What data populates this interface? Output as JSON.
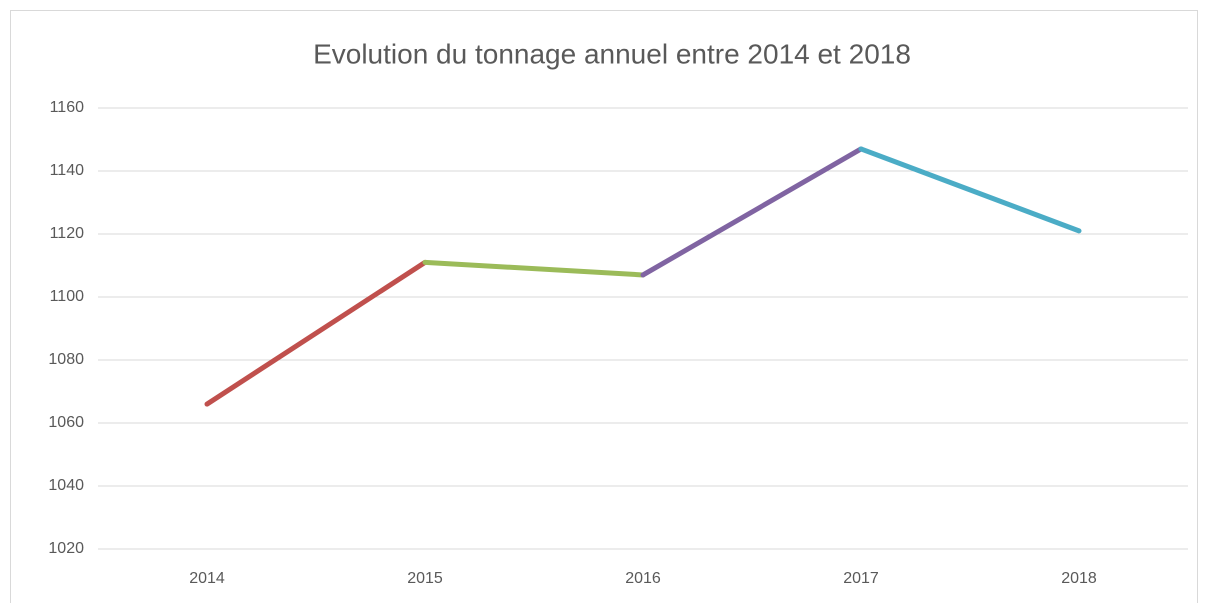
{
  "chart_data": {
    "type": "line",
    "title": "Evolution du tonnage annuel entre 2014 et 2018",
    "categories": [
      "2014",
      "2015",
      "2016",
      "2017",
      "2018"
    ],
    "series": [
      {
        "values": [
          1066,
          1111,
          1107,
          1147,
          1121
        ],
        "segment_colors": [
          "#c0504d",
          "#9bbb59",
          "#8064a2",
          "#4bacc6"
        ]
      }
    ],
    "ylim": [
      1020,
      1160
    ],
    "yticks": [
      1020,
      1040,
      1060,
      1080,
      1100,
      1120,
      1140,
      1160
    ],
    "grid": true
  }
}
